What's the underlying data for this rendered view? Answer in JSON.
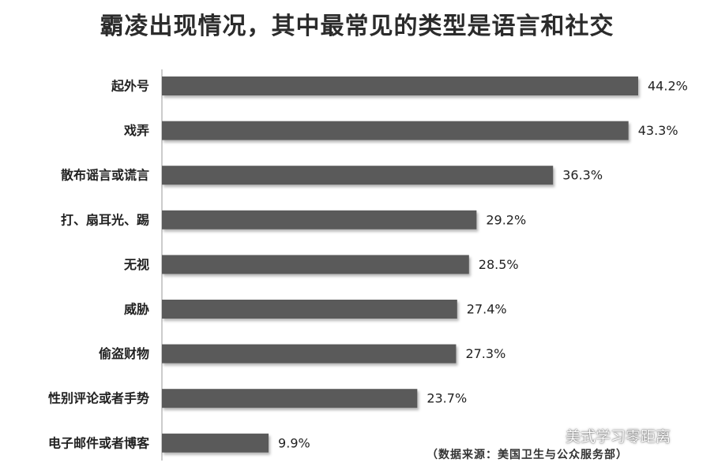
{
  "chart_data": {
    "type": "bar",
    "orientation": "horizontal",
    "title": "霸凌出现情况，其中最常见的类型是语言和社交",
    "categories": [
      "起外号",
      "戏弄",
      "散布谣言或谎言",
      "打、扇耳光、踢",
      "无视",
      "威胁",
      "偷盗财物",
      "性别评论或者手势",
      "电子邮件或者博客"
    ],
    "values": [
      44.2,
      43.3,
      36.3,
      29.2,
      28.5,
      27.4,
      27.3,
      23.7,
      9.9
    ],
    "value_labels": [
      "44.2%",
      "43.3%",
      "36.3%",
      "29.2%",
      "28.5%",
      "27.4%",
      "27.3%",
      "23.7%",
      "9.9%"
    ],
    "xlim": [
      0,
      44.2
    ],
    "grid": false,
    "bar_color": "#5a5a5a",
    "source": "（数据来源：美国卫生与公众服务部）"
  },
  "watermark": {
    "text": "美式学习零距离",
    "icon": "wechat-icon"
  }
}
